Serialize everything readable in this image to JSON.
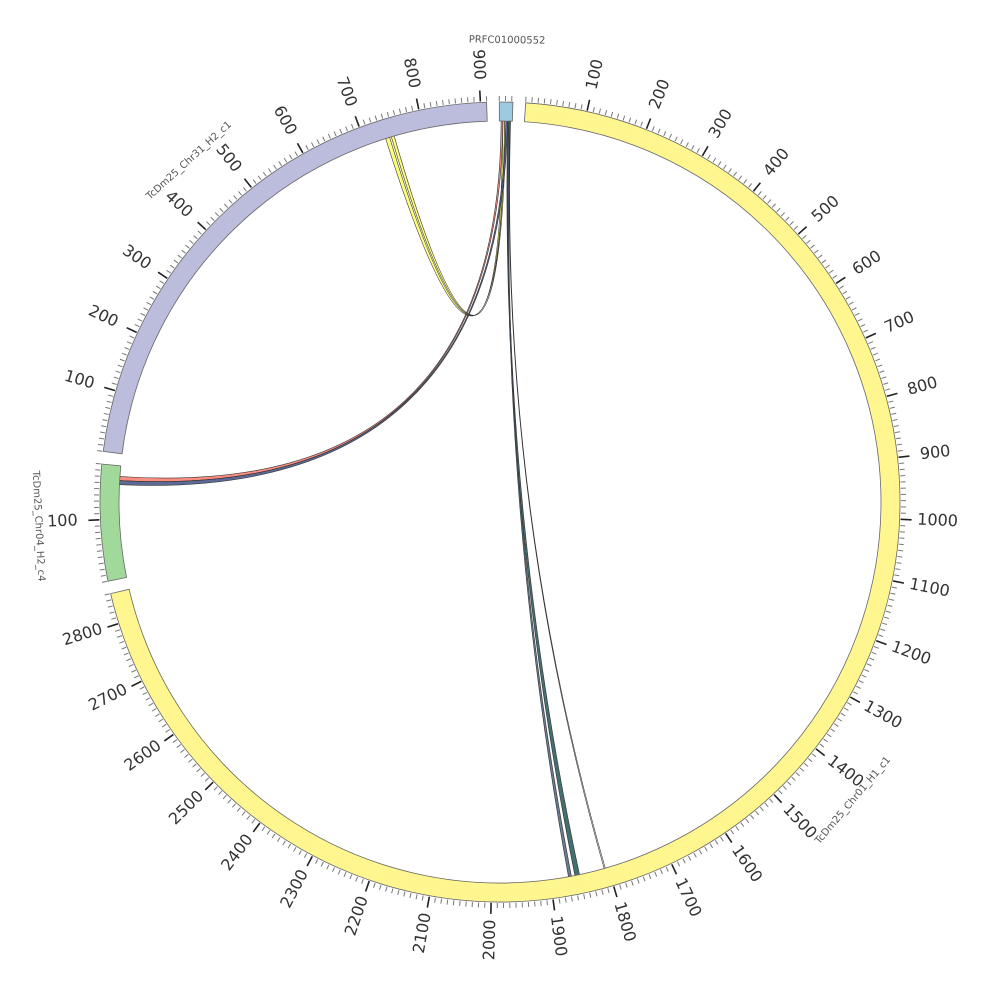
{
  "chart_data": {
    "type": "chord",
    "segments": [
      {
        "name": "PRFC01000552",
        "color": "#9ecae1",
        "length": 22,
        "ticks": [],
        "minor_tick_interval": 10
      },
      {
        "name": "TcDm25_Chr01_H1_c1",
        "color": "#fff68f",
        "length": 2850,
        "minor_tick_interval": 10,
        "ticks": [
          100,
          200,
          300,
          400,
          500,
          600,
          700,
          800,
          900,
          1000,
          1100,
          1200,
          1300,
          1400,
          1500,
          1600,
          1700,
          1800,
          1900,
          2000,
          2100,
          2200,
          2300,
          2400,
          2500,
          2600,
          2700,
          2800
        ]
      },
      {
        "name": "TcDm25_Chr04_H2_c4",
        "color": "#a1d99b",
        "length": 190,
        "minor_tick_interval": 10,
        "ticks": [
          100
        ]
      },
      {
        "name": "TcDm25_Chr31_H2_c1",
        "color": "#bcbddc",
        "length": 910,
        "minor_tick_interval": 10,
        "ticks": [
          100,
          200,
          300,
          400,
          500,
          600,
          700,
          800,
          900
        ]
      }
    ],
    "links": [
      {
        "source_segment": 0,
        "source": [
          6,
          9
        ],
        "target_segment": 3,
        "target": [
          735,
          742
        ],
        "color": "#ffff66"
      },
      {
        "source_segment": 0,
        "source": [
          9,
          11
        ],
        "target_segment": 3,
        "target": [
          745,
          750
        ],
        "color": "#ffff66"
      },
      {
        "source_segment": 0,
        "source": [
          3,
          6
        ],
        "target_segment": 2,
        "target": [
          165,
          172
        ],
        "color": "#fb8072"
      },
      {
        "source_segment": 0,
        "source": [
          11,
          14
        ],
        "target_segment": 2,
        "target": [
          158,
          165
        ],
        "color": "#4a5a8a"
      },
      {
        "source_segment": 0,
        "source": [
          14,
          16
        ],
        "target_segment": 1,
        "target": [
          1850,
          1858
        ],
        "color": "#2f5f5f"
      },
      {
        "source_segment": 0,
        "source": [
          16,
          18
        ],
        "target_segment": 1,
        "target": [
          1864,
          1869
        ],
        "color": "#556b8a"
      },
      {
        "source_segment": 0,
        "source": [
          18,
          19
        ],
        "target_segment": 1,
        "target": [
          1805,
          1807
        ],
        "color": "#ffffff"
      }
    ]
  }
}
